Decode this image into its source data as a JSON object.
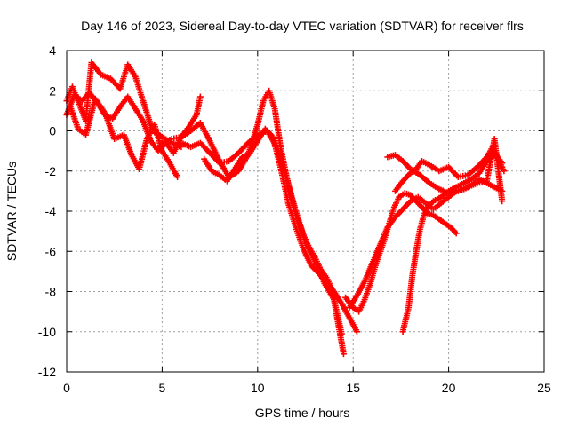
{
  "chart_data": {
    "type": "scatter",
    "title": "Day 146 of 2023, Sidereal Day-to-day VTEC variation (SDTVAR) for receiver flrs",
    "xlabel": "GPS time / hours",
    "ylabel": "SDTVAR / TECUs",
    "xlim": [
      0,
      25
    ],
    "ylim": [
      -12,
      4
    ],
    "x_ticks": [
      0,
      5,
      10,
      15,
      20,
      25
    ],
    "y_ticks": [
      -12,
      -10,
      -8,
      -6,
      -4,
      -2,
      0,
      2,
      4
    ],
    "x_tick_labels": [
      "0",
      "5",
      "10",
      "15",
      "20",
      "25"
    ],
    "y_tick_labels": [
      "-12",
      "-10",
      "-8",
      "-6",
      "-4",
      "-2",
      "0",
      "2",
      "4"
    ],
    "grid": true,
    "legend": "none",
    "marker": "+",
    "color": "#ff0000",
    "series": [
      {
        "x": [
          0.0,
          0.3,
          0.6,
          1.0,
          1.3,
          1.8,
          2.3,
          2.8,
          3.2,
          3.6,
          4.0,
          4.5,
          5.0,
          5.5,
          6.0
        ],
        "y": [
          1.5,
          2.2,
          1.5,
          0.5,
          3.4,
          2.8,
          2.6,
          2.1,
          3.3,
          2.7,
          1.5,
          0.0,
          -0.3,
          -0.6,
          -0.8
        ]
      },
      {
        "x": [
          0.0,
          0.4,
          0.8,
          1.2,
          1.6,
          2.0,
          2.4,
          2.8,
          3.2,
          3.6,
          4.0,
          4.4,
          4.8,
          5.2,
          5.6,
          6.0,
          6.4,
          6.8,
          7.0
        ],
        "y": [
          0.8,
          1.8,
          1.5,
          1.9,
          1.4,
          0.8,
          0.6,
          1.2,
          1.7,
          1.1,
          0.5,
          -0.5,
          -1.0,
          -0.6,
          -1.1,
          -0.3,
          0.2,
          0.8,
          1.7
        ]
      },
      {
        "x": [
          0.2,
          0.6,
          1.0,
          1.5,
          2.0,
          2.5,
          3.0,
          3.4,
          3.8,
          4.2,
          4.6,
          5.0,
          5.4,
          5.8
        ],
        "y": [
          1.2,
          0.1,
          -0.2,
          1.6,
          0.9,
          -0.4,
          -0.2,
          -1.2,
          -1.9,
          -0.4,
          0.3,
          -1.0,
          -1.6,
          -2.3
        ]
      },
      {
        "x": [
          5.0,
          5.5,
          6.0,
          6.5,
          7.0,
          7.5,
          8.0,
          8.5,
          9.0,
          9.5,
          10.0,
          10.3,
          10.6,
          10.9,
          11.2,
          11.5,
          11.8,
          12.1,
          12.4,
          12.7,
          13.0,
          13.3,
          13.6,
          13.9,
          14.2,
          14.5
        ],
        "y": [
          -0.6,
          -0.4,
          -0.3,
          0.0,
          0.4,
          -0.5,
          -1.5,
          -2.3,
          -2.0,
          -1.2,
          0.3,
          1.5,
          2.0,
          1.1,
          -0.8,
          -2.2,
          -3.5,
          -4.4,
          -5.2,
          -5.8,
          -6.3,
          -6.9,
          -7.3,
          -7.9,
          -9.5,
          -11.1
        ]
      },
      {
        "x": [
          6.0,
          6.5,
          7.0,
          7.5,
          8.0,
          8.5,
          9.0,
          9.5,
          10.0,
          10.5,
          11.0,
          11.5,
          12.0,
          12.5,
          13.0,
          13.5,
          14.0,
          14.4
        ],
        "y": [
          -0.6,
          -0.8,
          -0.6,
          -1.1,
          -1.6,
          -1.5,
          -1.1,
          -0.6,
          -0.2,
          0.0,
          -0.8,
          -2.3,
          -4.0,
          -5.5,
          -6.5,
          -7.6,
          -8.4,
          -10.1
        ]
      },
      {
        "x": [
          7.2,
          7.6,
          8.0,
          8.4,
          8.8,
          9.2,
          9.6,
          10.0,
          10.4,
          10.8,
          11.2,
          11.6,
          12.0,
          12.4,
          12.8,
          13.2,
          13.6,
          14.0,
          14.4,
          14.8,
          15.2
        ],
        "y": [
          -1.4,
          -2.0,
          -2.2,
          -2.5,
          -1.9,
          -1.3,
          -1.1,
          -0.5,
          0.1,
          -0.3,
          -1.8,
          -3.6,
          -4.8,
          -5.9,
          -6.7,
          -7.1,
          -7.5,
          -8.0,
          -8.6,
          -9.3,
          -10.0
        ]
      },
      {
        "x": [
          14.6,
          15.0,
          15.3,
          15.6,
          15.9,
          16.2,
          16.5,
          16.8,
          17.1,
          17.4,
          17.7,
          18.0,
          18.3,
          18.6,
          18.9,
          19.2,
          19.5,
          19.8,
          20.1,
          20.4
        ],
        "y": [
          -8.3,
          -8.8,
          -9.0,
          -8.4,
          -7.6,
          -6.6,
          -5.8,
          -4.9,
          -3.9,
          -3.3,
          -3.1,
          -3.2,
          -3.5,
          -3.8,
          -4.1,
          -4.2,
          -4.4,
          -4.6,
          -4.8,
          -5.1
        ]
      },
      {
        "x": [
          14.8,
          15.2,
          15.6,
          16.0,
          16.4,
          16.8,
          17.2,
          17.6,
          18.0,
          18.4,
          18.8,
          19.2,
          19.6,
          20.0,
          20.4,
          20.8,
          21.2,
          21.6,
          22.0,
          22.4,
          22.8
        ],
        "y": [
          -8.8,
          -8.2,
          -7.5,
          -6.6,
          -5.7,
          -4.8,
          -4.3,
          -3.9,
          -3.5,
          -3.3,
          -3.6,
          -3.9,
          -3.6,
          -3.3,
          -3.0,
          -2.9,
          -2.7,
          -2.4,
          -2.6,
          -2.8,
          -3.0
        ]
      },
      {
        "x": [
          17.2,
          17.6,
          18.0,
          18.3,
          18.6,
          19.0,
          19.5,
          20.0,
          20.5,
          21.0,
          21.5,
          22.0,
          22.3,
          22.6,
          22.9
        ],
        "y": [
          -3.0,
          -2.5,
          -2.1,
          -1.9,
          -1.5,
          -1.7,
          -2.0,
          -1.8,
          -2.3,
          -2.2,
          -1.8,
          -1.3,
          -0.8,
          -1.4,
          -2.0
        ]
      },
      {
        "x": [
          17.6,
          17.9,
          18.1,
          18.3,
          18.5,
          18.7,
          18.9,
          19.2,
          19.6,
          20.0,
          20.4,
          20.8,
          21.2,
          21.6,
          22.0,
          22.4,
          22.8
        ],
        "y": [
          -10.0,
          -8.8,
          -7.2,
          -6.0,
          -4.9,
          -4.2,
          -3.8,
          -3.5,
          -3.3,
          -3.0,
          -2.8,
          -2.6,
          -2.4,
          -2.1,
          -1.5,
          -1.1,
          -1.6
        ]
      },
      {
        "x": [
          16.8,
          17.2,
          17.6,
          18.0,
          18.5,
          19.0,
          19.5,
          20.0,
          20.5,
          21.0,
          21.5,
          22.0,
          22.4,
          22.8
        ],
        "y": [
          -1.3,
          -1.2,
          -1.5,
          -1.9,
          -2.2,
          -2.6,
          -2.9,
          -3.1,
          -3.0,
          -2.8,
          -2.6,
          -2.5,
          -0.4,
          -3.5
        ]
      }
    ]
  }
}
